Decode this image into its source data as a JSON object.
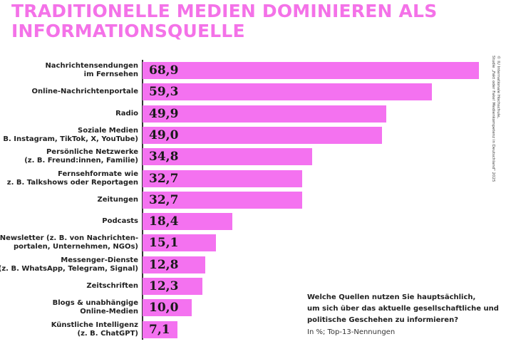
{
  "title": {
    "line1": "TRADITIONELLE MEDIEN DOMINIEREN ALS",
    "line2": "INFORMATIONSQUELLE"
  },
  "question": {
    "line1": "Welche Quellen nutzen Sie hauptsächlich,",
    "line2": "um sich über das aktuelle gesellschaftliche und",
    "line3": "politische Geschehen zu informieren?",
    "unit": "In %; Top-13-Nennungen"
  },
  "source": {
    "line1": "© IU Internationale Hochschule,",
    "line2": "Studie „Fakt oder Fake! Medienkompetenz in Deutschland\" 2025"
  },
  "colors": {
    "accent": "#f472e8",
    "bar": "#f472f0"
  },
  "chart_data": {
    "type": "bar",
    "orientation": "horizontal",
    "title": "TRADITIONELLE MEDIEN DOMINIEREN ALS INFORMATIONSQUELLE",
    "categories": [
      [
        "Nachrichtensendungen",
        "im Fernsehen"
      ],
      [
        "Online-Nachrichtenportale"
      ],
      [
        "Radio"
      ],
      [
        "Soziale Medien",
        "(z. B. Instagram, TikTok, X, YouTube)"
      ],
      [
        "Persönliche Netzwerke",
        "(z. B. Freund:innen, Familie)"
      ],
      [
        "Fernsehformate wie",
        "z. B. Talkshows oder Reportagen"
      ],
      [
        "Zeitungen"
      ],
      [
        "Podcasts"
      ],
      [
        "Newsletter (z. B. von Nachrichten-",
        "portalen, Unternehmen, NGOs)"
      ],
      [
        "Messenger-Dienste",
        "(z. B. WhatsApp, Telegram, Signal)"
      ],
      [
        "Zeitschriften"
      ],
      [
        "Blogs & unabhängige",
        "Online-Medien"
      ],
      [
        "Künstliche Intelligenz",
        "(z. B. ChatGPT)"
      ]
    ],
    "values": [
      68.9,
      59.3,
      49.9,
      49.0,
      34.8,
      32.7,
      32.7,
      18.4,
      15.1,
      12.8,
      12.3,
      10.0,
      7.1
    ],
    "value_labels": [
      "68,9",
      "59,3",
      "49,9",
      "49,0",
      "34,8",
      "32,7",
      "32,7",
      "18,4",
      "15,1",
      "12,8",
      "12,3",
      "10,0",
      "7,1"
    ],
    "xlim": [
      0,
      68.9
    ],
    "grid": false,
    "legend": "none"
  }
}
